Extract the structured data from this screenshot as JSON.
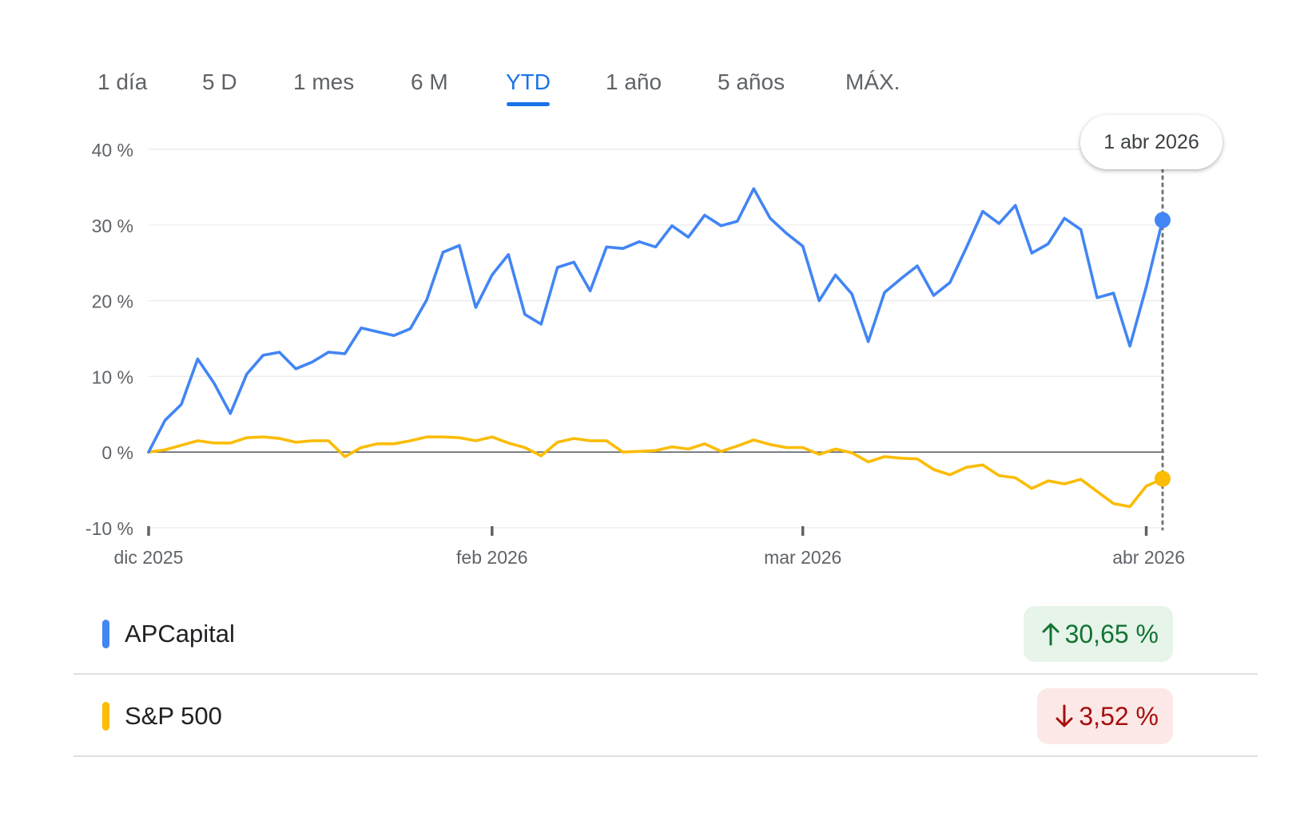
{
  "tabs": [
    {
      "label": "1 día",
      "active": false
    },
    {
      "label": "5 D",
      "active": false
    },
    {
      "label": "1 mes",
      "active": false
    },
    {
      "label": "6 M",
      "active": false
    },
    {
      "label": "YTD",
      "active": true
    },
    {
      "label": "1 año",
      "active": false
    },
    {
      "label": "5 años",
      "active": false
    },
    {
      "label": "MÁX.",
      "active": false
    }
  ],
  "tooltip": {
    "date": "1 abr 2026"
  },
  "colors": {
    "accent": "#1a73e8",
    "series_blue": "#4285f4",
    "series_yellow": "#fbbc04",
    "up_bg": "#e6f4ea",
    "up_text": "#137333",
    "down_bg": "#fce8e6",
    "down_text": "#a50e0e"
  },
  "legend": [
    {
      "name": "APCapital",
      "change": "30,65 %",
      "direction": "up",
      "color": "#4285f4"
    },
    {
      "name": "S&P 500",
      "change": "3,52 %",
      "direction": "down",
      "color": "#fbbc04"
    }
  ],
  "chart_data": {
    "type": "line",
    "title": "",
    "xlabel": "",
    "ylabel": "",
    "ylim": [
      -10,
      40
    ],
    "yticks": [
      40,
      30,
      20,
      10,
      0,
      -10
    ],
    "ytick_labels": [
      "40 %",
      "30 %",
      "20 %",
      "10 %",
      "0 %",
      "-10 %"
    ],
    "xticks": [
      {
        "label": "dic 2025",
        "index": 0
      },
      {
        "label": "feb 2026",
        "index": 21
      },
      {
        "label": "mar 2026",
        "index": 40
      },
      {
        "label": "abr 2026",
        "index": 61
      }
    ],
    "grid": true,
    "zero_line": true,
    "hover_index": 62,
    "series": [
      {
        "name": "APCapital",
        "color": "#4285f4",
        "values": [
          0,
          4.2,
          6.3,
          12.3,
          9.1,
          5.1,
          10.3,
          12.8,
          13.2,
          11.0,
          11.9,
          13.2,
          13.0,
          16.4,
          15.9,
          15.4,
          16.3,
          20.1,
          26.4,
          27.3,
          19.1,
          23.4,
          26.1,
          18.2,
          16.9,
          24.4,
          25.1,
          21.3,
          27.1,
          26.9,
          27.8,
          27.1,
          29.9,
          28.4,
          31.3,
          29.9,
          30.5,
          34.8,
          30.9,
          28.9,
          27.2,
          20.0,
          23.4,
          20.9,
          14.6,
          21.1,
          22.9,
          24.6,
          20.7,
          22.4,
          27.0,
          31.8,
          30.2,
          32.6,
          26.3,
          27.5,
          30.9,
          29.4,
          20.4,
          21.0,
          14.0,
          21.8,
          30.65
        ]
      },
      {
        "name": "S&P 500",
        "color": "#fbbc04",
        "values": [
          0,
          0.3,
          0.9,
          1.5,
          1.2,
          1.2,
          1.9,
          2.0,
          1.8,
          1.3,
          1.5,
          1.5,
          -0.6,
          0.6,
          1.1,
          1.1,
          1.5,
          2.0,
          2.0,
          1.9,
          1.5,
          2.0,
          1.2,
          0.6,
          -0.5,
          1.3,
          1.8,
          1.5,
          1.5,
          0.0,
          0.1,
          0.2,
          0.7,
          0.4,
          1.1,
          0.1,
          0.8,
          1.6,
          1.0,
          0.6,
          0.6,
          -0.3,
          0.4,
          -0.1,
          -1.3,
          -0.6,
          -0.8,
          -0.9,
          -2.3,
          -3.0,
          -2.0,
          -1.7,
          -3.1,
          -3.4,
          -4.8,
          -3.8,
          -4.2,
          -3.6,
          -5.2,
          -6.8,
          -7.2,
          -4.5,
          -3.52
        ]
      }
    ]
  }
}
